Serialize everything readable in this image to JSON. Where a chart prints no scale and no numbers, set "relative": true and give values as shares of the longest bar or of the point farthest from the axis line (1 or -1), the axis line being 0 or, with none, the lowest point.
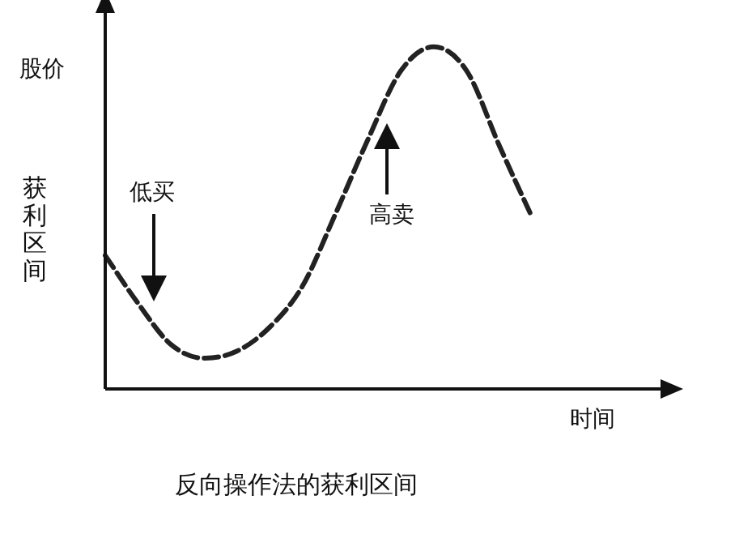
{
  "chart_data": {
    "type": "line",
    "title": "反向操作法的获利区间",
    "xlabel": "时间",
    "ylabel": "股价",
    "relative": true,
    "line_style": "dashed",
    "marker": "none",
    "legend": false,
    "categories": [
      null,
      null,
      null,
      null,
      null,
      null,
      null,
      null,
      null,
      null,
      null,
      null,
      null,
      null,
      null,
      null,
      null,
      null
    ],
    "series": [
      {
        "color": "#222222",
        "values": [
          0.39,
          0.25,
          0.13,
          0.09,
          0.11,
          0.18,
          0.3,
          0.51,
          0.73,
          0.93,
          1.0,
          0.93,
          0.71,
          0.5,
          null,
          null,
          null,
          null
        ]
      }
    ],
    "annotations": [
      "获利区间",
      "低买",
      "高卖"
    ]
  }
}
